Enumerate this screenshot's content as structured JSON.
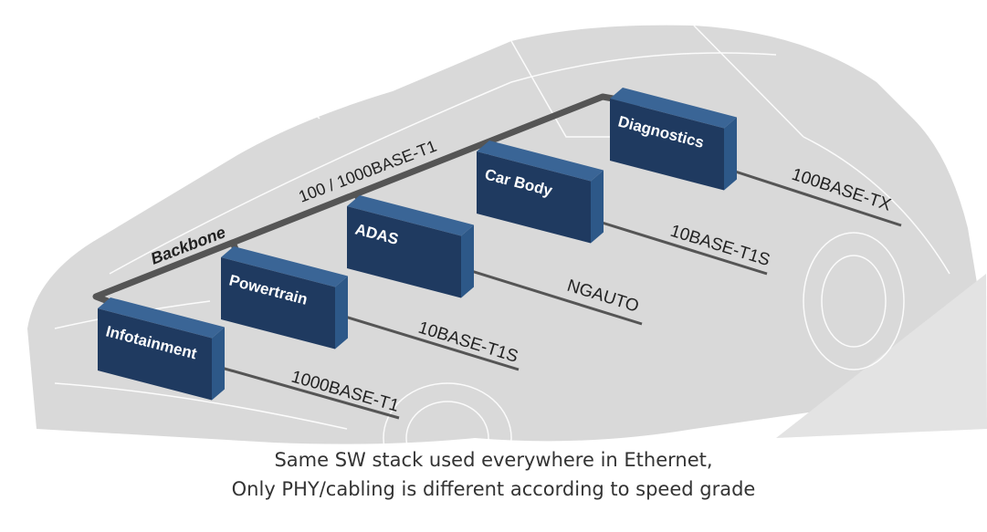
{
  "backbone": {
    "label": "Backbone",
    "speed_label": "100 / 1000BASE-T1"
  },
  "ecus": [
    {
      "name": "Infotainment",
      "link": "1000BASE-T1"
    },
    {
      "name": "Powertrain",
      "link": "10BASE-T1S"
    },
    {
      "name": "ADAS",
      "link": "NGAUTO"
    },
    {
      "name": "Car Body",
      "link": "10BASE-T1S"
    },
    {
      "name": "Diagnostics",
      "link": "100BASE-TX"
    }
  ],
  "caption": {
    "line1": "Same SW stack used everywhere in Ethernet,",
    "line2": "Only PHY/cabling is different according to speed grade"
  },
  "colors": {
    "box_front": "#1f3a60",
    "box_top": "#3a6596",
    "box_side": "#2d5888",
    "backbone": "#555555",
    "car": "#d9d9d9"
  }
}
